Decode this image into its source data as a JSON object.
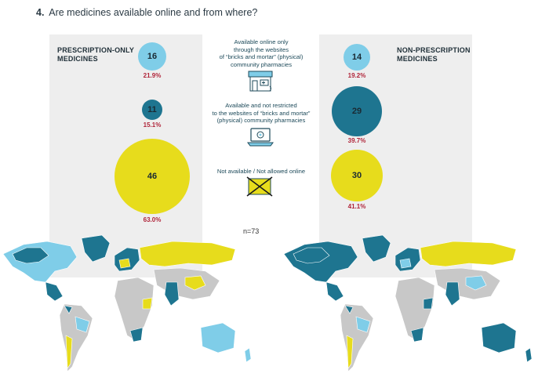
{
  "heading": {
    "number": "4.",
    "text": "Are medicines available online and from where?"
  },
  "left_panel": {
    "title_line1": "PRESCRIPTION-ONLY",
    "title_line2": "MEDICINES",
    "items": [
      {
        "value": "16",
        "percent": "21.9%"
      },
      {
        "value": "11",
        "percent": "15.1%"
      },
      {
        "value": "46",
        "percent": "63.0%"
      }
    ]
  },
  "right_panel": {
    "title_line1": "NON-PRESCRIPTION",
    "title_line2": "MEDICINES",
    "items": [
      {
        "value": "14",
        "percent": "19.2%"
      },
      {
        "value": "29",
        "percent": "39.7%"
      },
      {
        "value": "30",
        "percent": "41.1%"
      }
    ]
  },
  "legend": [
    {
      "line1": "Available online only",
      "line2": "through the websites",
      "line3": "of “bricks and mortar” (physical)",
      "line4": "community pharmacies",
      "icon": "pharmacy-store-icon"
    },
    {
      "line1": "Available and not restricted",
      "line2": "to the websites of “bricks and mortar”",
      "line3": "(physical) community pharmacies",
      "icon": "laptop-icon"
    },
    {
      "line1": "Not available / Not allowed online",
      "icon": "crossed-box-icon"
    }
  ],
  "sample_size": "n=73",
  "colors": {
    "light_blue": "#7fcde8",
    "dark_blue": "#1e7590",
    "yellow": "#e7dc1c",
    "no_data_grey": "#c8c8c8",
    "percent_red": "#b0253a"
  }
}
